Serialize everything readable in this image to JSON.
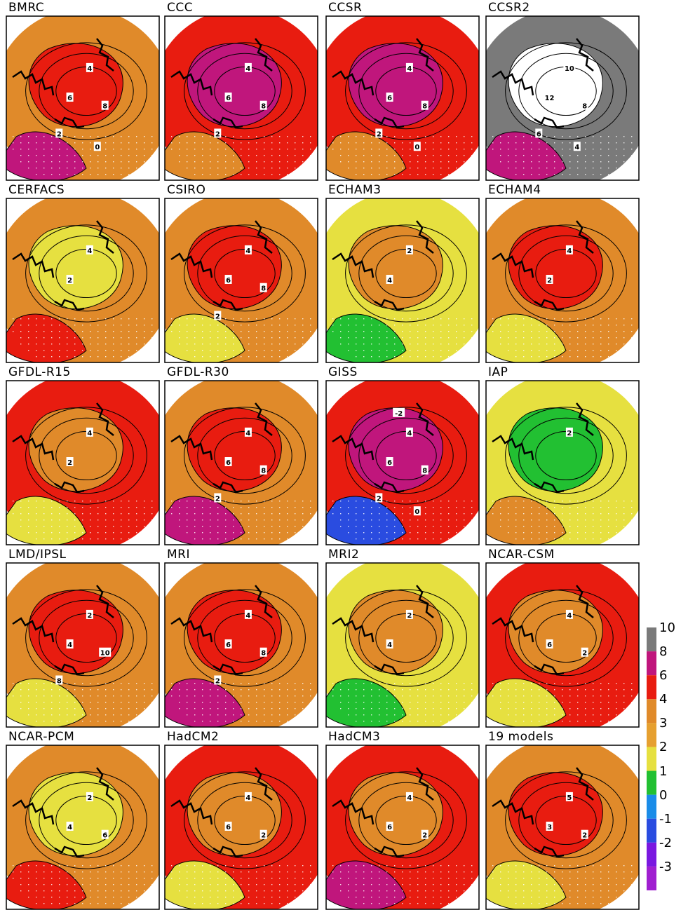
{
  "panels": [
    {
      "title": "BMRC",
      "fill": [
        "#e08a2a",
        "#e81c10",
        "#c0167c"
      ],
      "labels": [
        "4",
        "6",
        "8",
        "2",
        "0"
      ]
    },
    {
      "title": "CCC",
      "fill": [
        "#e81c10",
        "#c0167c",
        "#e08a2a"
      ],
      "labels": [
        "4",
        "6",
        "8",
        "2"
      ]
    },
    {
      "title": "CCSR",
      "fill": [
        "#e81c10",
        "#c0167c",
        "#e08a2a"
      ],
      "labels": [
        "4",
        "6",
        "8",
        "2",
        "0"
      ]
    },
    {
      "title": "CCSR2",
      "fill": [
        "#7a7a7a",
        "#ffffff",
        "#c0167c"
      ],
      "labels": [
        "10",
        "12",
        "8",
        "6",
        "4"
      ]
    },
    {
      "title": "CERFACS",
      "fill": [
        "#e08a2a",
        "#e6e040",
        "#e81c10"
      ],
      "labels": [
        "4",
        "2"
      ]
    },
    {
      "title": "CSIRO",
      "fill": [
        "#e08a2a",
        "#e81c10",
        "#e6e040"
      ],
      "labels": [
        "4",
        "6",
        "8",
        "2"
      ]
    },
    {
      "title": "ECHAM3",
      "fill": [
        "#e6e040",
        "#e08a2a",
        "#22c032"
      ],
      "labels": [
        "2",
        "4"
      ]
    },
    {
      "title": "ECHAM4",
      "fill": [
        "#e08a2a",
        "#e81c10",
        "#e6e040"
      ],
      "labels": [
        "4",
        "2"
      ]
    },
    {
      "title": "GFDL-R15",
      "fill": [
        "#e81c10",
        "#e08a2a",
        "#e6e040"
      ],
      "labels": [
        "4",
        "2"
      ]
    },
    {
      "title": "GFDL-R30",
      "fill": [
        "#e08a2a",
        "#e81c10",
        "#c0167c"
      ],
      "labels": [
        "4",
        "6",
        "8",
        "2"
      ]
    },
    {
      "title": "GISS",
      "fill": [
        "#e81c10",
        "#c0167c",
        "#2a4ce0"
      ],
      "labels": [
        "4",
        "6",
        "8",
        "2",
        "0",
        "-2"
      ]
    },
    {
      "title": "IAP",
      "fill": [
        "#e6e040",
        "#22c032",
        "#e08a2a"
      ],
      "labels": [
        "2"
      ]
    },
    {
      "title": "LMD/IPSL",
      "fill": [
        "#e08a2a",
        "#e81c10",
        "#e6e040"
      ],
      "labels": [
        "2",
        "4",
        "10",
        "8"
      ]
    },
    {
      "title": "MRI",
      "fill": [
        "#e08a2a",
        "#e81c10",
        "#c0167c"
      ],
      "labels": [
        "4",
        "6",
        "8",
        "2"
      ]
    },
    {
      "title": "MRI2",
      "fill": [
        "#e6e040",
        "#e08a2a",
        "#22c032"
      ],
      "labels": [
        "2",
        "4"
      ]
    },
    {
      "title": "NCAR-CSM",
      "fill": [
        "#e81c10",
        "#e08a2a",
        "#e6e040"
      ],
      "labels": [
        "4",
        "6",
        "2"
      ]
    },
    {
      "title": "NCAR-PCM",
      "fill": [
        "#e08a2a",
        "#e6e040",
        "#e81c10"
      ],
      "labels": [
        "2",
        "4",
        "6"
      ]
    },
    {
      "title": "HadCM2",
      "fill": [
        "#e81c10",
        "#e08a2a",
        "#e6e040"
      ],
      "labels": [
        "4",
        "6",
        "2"
      ]
    },
    {
      "title": "HadCM3",
      "fill": [
        "#e81c10",
        "#e08a2a",
        "#c0167c"
      ],
      "labels": [
        "4",
        "6",
        "2"
      ]
    },
    {
      "title": "19 models",
      "fill": [
        "#e08a2a",
        "#e81c10",
        "#e6e040"
      ],
      "labels": [
        "5",
        "3",
        "2"
      ]
    }
  ],
  "legend": {
    "ticks": [
      "10",
      "8",
      "6",
      "4",
      "3",
      "2",
      "1",
      "0",
      "-1",
      "-2",
      "-3"
    ],
    "colors": [
      "#7a7a7a",
      "#c0167c",
      "#e81c10",
      "#e08a2a",
      "#e6a030",
      "#e6e040",
      "#22c032",
      "#1a8ce8",
      "#2a4ce0",
      "#7a18e0",
      "#a020d0"
    ]
  }
}
